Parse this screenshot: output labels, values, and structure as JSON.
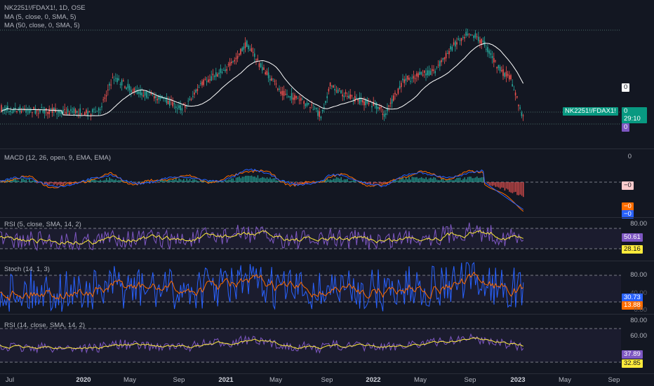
{
  "header": {
    "symbol_line": "NK2251!/FDAX1!, 1D, OSE",
    "ma5_line": "MA (5, close, 0, SMA, 5)",
    "ma50_line": "MA (50, close, 0, SMA, 5)"
  },
  "main_pane": {
    "axis_value": "0",
    "symbol_tag": "NK2251!/FDAX1!",
    "price_tag": "0",
    "countdown": "29:10",
    "low_tag": "0",
    "colors": {
      "tag_bg": "#089981",
      "ma_line": "#ffffff",
      "up": "#26a69a",
      "down": "#ef5350"
    }
  },
  "macd": {
    "legend": "MACD (12, 26, open, 9, EMA, EMA)",
    "axis_value": "0",
    "hist_tag": "−0",
    "macd_tag": "−0",
    "signal_tag": "−0",
    "colors": {
      "macd": "#2962ff",
      "signal": "#ff6d00"
    }
  },
  "rsi1": {
    "legend": "RSI (5, close, SMA, 14, 2)",
    "axis_top": "80.00",
    "value_tag": "50.61",
    "ma_tag": "28.16",
    "colors": {
      "line": "#7e57c2",
      "ma": "#ffeb3b"
    }
  },
  "stoch": {
    "legend": "Stoch (14, 1, 3)",
    "axis_top": "80.00",
    "axis_mid": "40.00",
    "axis_low": "0.00",
    "k_tag": "30.73",
    "d_tag": "13.88",
    "colors": {
      "k": "#2962ff",
      "d": "#ff6d00"
    }
  },
  "rsi2": {
    "legend": "RSI (14, close, SMA, 14, 2)",
    "axis_top": "80.00",
    "axis_mid": "60.00",
    "value_tag": "37.89",
    "ma_tag": "32.85",
    "colors": {
      "line": "#7e57c2",
      "ma": "#ffeb3b"
    }
  },
  "time_axis": {
    "labels": [
      {
        "text": "Jul",
        "bold": false
      },
      {
        "text": "2020",
        "bold": true
      },
      {
        "text": "May",
        "bold": false
      },
      {
        "text": "Sep",
        "bold": false
      },
      {
        "text": "2021",
        "bold": true
      },
      {
        "text": "May",
        "bold": false
      },
      {
        "text": "Sep",
        "bold": false
      },
      {
        "text": "2022",
        "bold": true
      },
      {
        "text": "May",
        "bold": false
      },
      {
        "text": "Sep",
        "bold": false
      },
      {
        "text": "2023",
        "bold": true
      },
      {
        "text": "May",
        "bold": false
      },
      {
        "text": "Sep",
        "bold": false
      }
    ]
  }
}
